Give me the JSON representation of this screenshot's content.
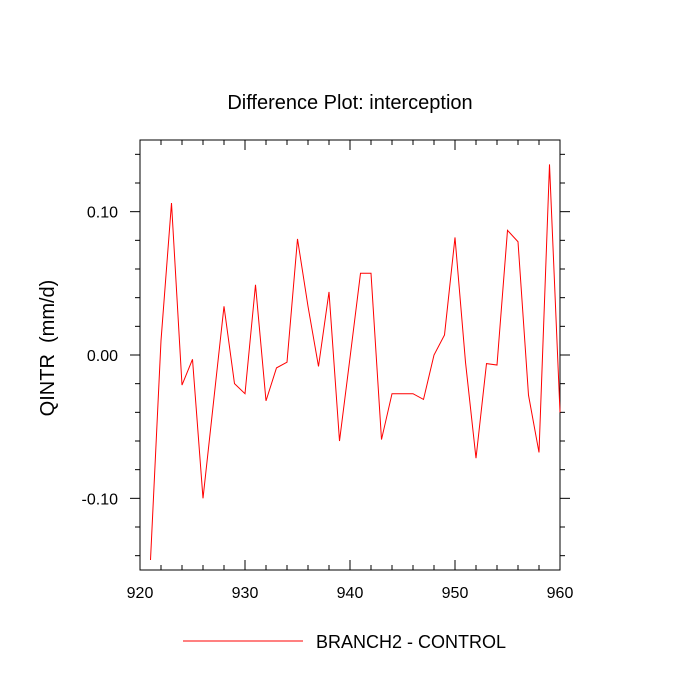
{
  "chart_data": {
    "type": "line",
    "title": "Difference Plot: interception",
    "xlabel": "",
    "ylabel": "QINTR  (mm/d)",
    "xlim": [
      920,
      960
    ],
    "ylim": [
      -0.15,
      0.15
    ],
    "x_ticks": [
      920,
      930,
      940,
      950,
      960
    ],
    "x_tick_labels": [
      "920",
      "930",
      "940",
      "950",
      "960"
    ],
    "y_ticks": [
      0.1,
      0.0,
      -0.1
    ],
    "y_tick_labels": [
      "0.10",
      "0.00",
      "-0.10"
    ],
    "grid": false,
    "legend_position": "bottom-center",
    "series": [
      {
        "name": "BRANCH2 - CONTROL",
        "color": "#ff0000",
        "x": [
          921,
          922,
          923,
          924,
          925,
          926,
          927,
          928,
          929,
          930,
          931,
          932,
          933,
          934,
          935,
          936,
          937,
          938,
          939,
          940,
          941,
          942,
          943,
          944,
          945,
          946,
          947,
          948,
          949,
          950,
          951,
          952,
          953,
          954,
          955,
          956,
          957,
          958,
          959,
          960
        ],
        "values": [
          -0.143,
          0.01,
          0.106,
          -0.021,
          -0.003,
          -0.1,
          -0.033,
          0.034,
          -0.02,
          -0.027,
          0.049,
          -0.032,
          -0.009,
          -0.005,
          0.081,
          0.034,
          -0.008,
          0.044,
          -0.06,
          -0.002,
          0.057,
          0.057,
          -0.059,
          -0.027,
          -0.027,
          -0.027,
          -0.031,
          0.0,
          0.014,
          0.082,
          -0.005,
          -0.072,
          -0.006,
          -0.007,
          0.087,
          0.079,
          -0.028,
          -0.068,
          0.133,
          -0.04
        ]
      }
    ]
  }
}
